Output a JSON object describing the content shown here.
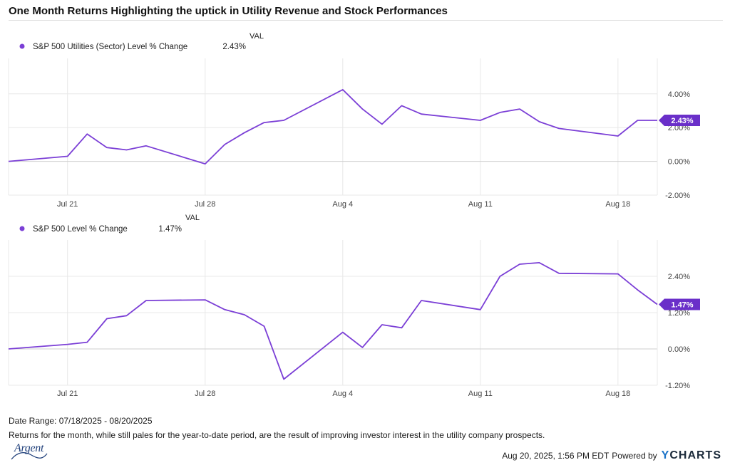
{
  "title": "One Month Returns Highlighting the uptick in Utility Revenue and Stock Performances",
  "date_range": "Date Range: 07/18/2025 - 08/20/2025",
  "caption": "Returns for the month, while still pales for the year-to-date period, are the result of improving investor interest in the utility company prospects.",
  "logo_text": "Argent",
  "footer": {
    "timestamp": "Aug 20, 2025, 1:56 PM EDT",
    "powered_by": "Powered by",
    "brand_y": "Y",
    "brand_rest": "CHARTS"
  },
  "colors": {
    "line": "#7b3fd6",
    "badge": "#6a2fc9",
    "grid": "#e8e8e8",
    "zero": "#cfcfcf"
  },
  "chart_data": [
    {
      "type": "line",
      "legend_header": "VAL",
      "series": [
        {
          "name": "S&P 500 Utilities (Sector) Level % Change",
          "last_label": "2.43%",
          "last_value": 2.43,
          "x": [
            0,
            3,
            4,
            5,
            6,
            7,
            10,
            11,
            12,
            13,
            14,
            17,
            18,
            19,
            20,
            21,
            24,
            25,
            26,
            27,
            28,
            31,
            32,
            33
          ],
          "values": [
            0.0,
            0.3,
            1.62,
            0.82,
            0.68,
            0.92,
            -0.15,
            1.0,
            1.7,
            2.3,
            2.43,
            4.25,
            3.1,
            2.2,
            3.3,
            2.8,
            2.43,
            2.9,
            3.1,
            2.35,
            1.95,
            1.5,
            2.43,
            2.43
          ]
        }
      ],
      "x_ticks": [
        {
          "x": 3,
          "label": "Jul 21"
        },
        {
          "x": 10,
          "label": "Jul 28"
        },
        {
          "x": 17,
          "label": "Aug 4"
        },
        {
          "x": 24,
          "label": "Aug 11"
        },
        {
          "x": 31,
          "label": "Aug 18"
        }
      ],
      "y_ticks": [
        {
          "v": 4,
          "label": "4.00%"
        },
        {
          "v": 2,
          "label": "2.00%"
        },
        {
          "v": 0,
          "label": "0.00%"
        },
        {
          "v": -2,
          "label": "-2.00%"
        }
      ],
      "ylim": [
        -2,
        6.1
      ],
      "xlim": [
        0,
        33
      ],
      "grid": true
    },
    {
      "type": "line",
      "legend_header": "VAL",
      "series": [
        {
          "name": "S&P 500 Level % Change",
          "last_label": "1.47%",
          "last_value": 1.47,
          "x": [
            0,
            3,
            4,
            5,
            6,
            7,
            10,
            11,
            12,
            13,
            14,
            17,
            18,
            19,
            20,
            21,
            24,
            25,
            26,
            27,
            28,
            31,
            32,
            33
          ],
          "values": [
            0.0,
            0.15,
            0.22,
            1.0,
            1.1,
            1.6,
            1.62,
            1.3,
            1.13,
            0.75,
            -1.0,
            0.55,
            0.05,
            0.8,
            0.7,
            1.6,
            1.3,
            2.4,
            2.8,
            2.85,
            2.5,
            2.48,
            1.95,
            1.47
          ]
        }
      ],
      "x_ticks": [
        {
          "x": 3,
          "label": "Jul 21"
        },
        {
          "x": 10,
          "label": "Jul 28"
        },
        {
          "x": 17,
          "label": "Aug 4"
        },
        {
          "x": 24,
          "label": "Aug 11"
        },
        {
          "x": 31,
          "label": "Aug 18"
        }
      ],
      "y_ticks": [
        {
          "v": 2.4,
          "label": "2.40%"
        },
        {
          "v": 1.2,
          "label": "1.20%"
        },
        {
          "v": 0,
          "label": "0.00%"
        },
        {
          "v": -1.2,
          "label": "-1.20%"
        }
      ],
      "ylim": [
        -1.2,
        3.6
      ],
      "xlim": [
        0,
        33
      ],
      "grid": true
    }
  ]
}
